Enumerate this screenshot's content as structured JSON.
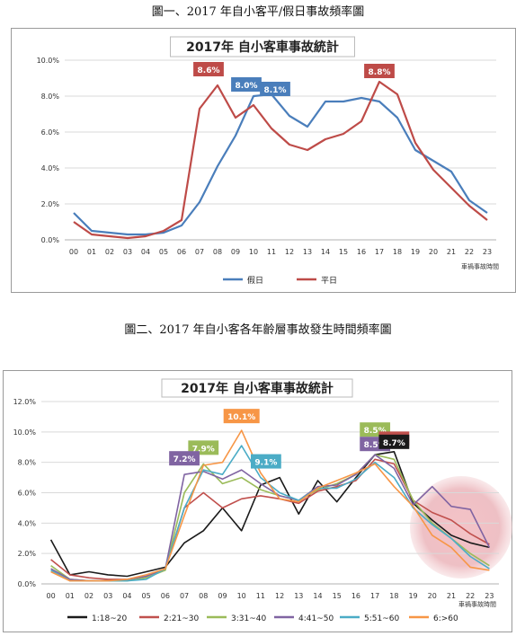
{
  "captions": {
    "fig1": "圖一、2017 年自小客平/假日事故頻率圖",
    "fig2": "圖二、2017 年自小客各年齡層事故發生時間頻率圖"
  },
  "chart_data": [
    {
      "type": "line",
      "title": "2017年 自小客車事故統計",
      "xlabel": "車禍事故時間",
      "ylabel": "",
      "categories": [
        "00",
        "01",
        "02",
        "03",
        "04",
        "05",
        "06",
        "07",
        "08",
        "09",
        "10",
        "11",
        "12",
        "13",
        "14",
        "15",
        "16",
        "17",
        "18",
        "19",
        "20",
        "21",
        "22",
        "23"
      ],
      "ylim": [
        0,
        10
      ],
      "yticks": [
        "0.0%",
        "2.0%",
        "4.0%",
        "6.0%",
        "8.0%",
        "10.0%"
      ],
      "grid": true,
      "legend": "bottom",
      "series": [
        {
          "name": "假日",
          "color": "#4a7ebb",
          "values": [
            1.5,
            0.5,
            0.4,
            0.3,
            0.3,
            0.4,
            0.8,
            2.1,
            4.1,
            5.8,
            8.0,
            8.1,
            6.9,
            6.3,
            7.7,
            7.7,
            7.9,
            7.7,
            6.8,
            5.0,
            4.4,
            3.8,
            2.2,
            1.5
          ]
        },
        {
          "name": "平日",
          "color": "#be4b48",
          "values": [
            1.0,
            0.3,
            0.2,
            0.1,
            0.2,
            0.5,
            1.1,
            7.3,
            8.6,
            6.8,
            7.5,
            6.2,
            5.3,
            5.0,
            5.6,
            5.9,
            6.6,
            8.8,
            8.1,
            5.4,
            3.9,
            2.9,
            1.9,
            1.1
          ]
        }
      ],
      "annotations": [
        {
          "text": "8.6%",
          "series": "平日",
          "category": "08"
        },
        {
          "text": "8.0%",
          "series": "假日",
          "category": "10"
        },
        {
          "text": "8.1%",
          "series": "假日",
          "category": "11"
        },
        {
          "text": "8.8%",
          "series": "平日",
          "category": "17"
        }
      ]
    },
    {
      "type": "line",
      "title": "2017年 自小客車事故統計",
      "xlabel": "車禍事故時間",
      "ylabel": "",
      "categories": [
        "00",
        "01",
        "02",
        "03",
        "04",
        "05",
        "06",
        "07",
        "08",
        "09",
        "10",
        "11",
        "12",
        "13",
        "14",
        "15",
        "16",
        "17",
        "18",
        "19",
        "20",
        "21",
        "22",
        "23"
      ],
      "ylim": [
        0,
        12
      ],
      "yticks": [
        "0.0%",
        "2.0%",
        "4.0%",
        "6.0%",
        "8.0%",
        "10.0%",
        "12.0%"
      ],
      "grid": true,
      "legend": "bottom",
      "series": [
        {
          "name": "1:18~20",
          "color": "#1a1a1a",
          "values": [
            2.9,
            0.6,
            0.8,
            0.6,
            0.5,
            0.8,
            1.1,
            2.7,
            3.5,
            5.0,
            3.5,
            6.5,
            7.0,
            4.6,
            6.8,
            5.4,
            7.0,
            8.5,
            8.7,
            5.3,
            4.2,
            3.2,
            2.7,
            2.4
          ]
        },
        {
          "name": "2:21~30",
          "color": "#c0504d",
          "values": [
            1.6,
            0.6,
            0.4,
            0.3,
            0.3,
            0.5,
            1.0,
            5.0,
            6.0,
            5.0,
            5.6,
            5.8,
            5.6,
            5.3,
            6.1,
            6.4,
            6.8,
            8.2,
            7.9,
            5.5,
            4.7,
            4.2,
            3.3,
            2.6
          ]
        },
        {
          "name": "3:31~40",
          "color": "#9bbb59",
          "values": [
            1.2,
            0.3,
            0.2,
            0.2,
            0.2,
            0.4,
            0.9,
            6.0,
            7.9,
            6.6,
            7.0,
            6.2,
            5.8,
            5.5,
            6.2,
            6.6,
            7.2,
            8.5,
            8.2,
            5.5,
            4.0,
            3.0,
            2.0,
            1.2
          ]
        },
        {
          "name": "4:41~50",
          "color": "#8064a2",
          "values": [
            1.0,
            0.3,
            0.2,
            0.2,
            0.3,
            0.5,
            1.0,
            7.2,
            7.4,
            6.9,
            7.5,
            6.6,
            5.8,
            5.5,
            6.4,
            6.5,
            7.2,
            8.5,
            7.6,
            5.2,
            6.4,
            5.1,
            4.9,
            2.4
          ]
        },
        {
          "name": "5:51~60",
          "color": "#4bacc6",
          "values": [
            0.9,
            0.2,
            0.2,
            0.2,
            0.2,
            0.3,
            1.0,
            5.0,
            7.5,
            7.2,
            9.1,
            7.0,
            6.0,
            5.5,
            6.3,
            6.3,
            6.9,
            8.0,
            7.0,
            5.0,
            3.9,
            3.0,
            1.8,
            1.0
          ]
        },
        {
          "name": "6:>60",
          "color": "#f79646",
          "values": [
            0.8,
            0.2,
            0.2,
            0.2,
            0.3,
            0.6,
            1.0,
            4.5,
            7.8,
            8.0,
            10.1,
            7.3,
            5.6,
            5.4,
            6.3,
            6.8,
            7.3,
            7.9,
            6.4,
            5.1,
            3.2,
            2.4,
            1.1,
            0.9
          ]
        }
      ],
      "annotations": [
        {
          "text": "7.9%",
          "series": "3:31~40",
          "category": "08",
          "color": "#9bbb59"
        },
        {
          "text": "7.2%",
          "series": "4:41~50",
          "category": "07",
          "color": "#8064a2"
        },
        {
          "text": "10.1%",
          "series": "6:>60",
          "category": "10",
          "color": "#f79646"
        },
        {
          "text": "9.1%",
          "series": "5:51~60",
          "category": "11",
          "color": "#4bacc6"
        },
        {
          "text": "8.5%",
          "series": "3:31~40",
          "category": "17",
          "color": "#9bbb59"
        },
        {
          "text": "8.5%",
          "series": "4:41~50",
          "category": "17",
          "color": "#8064a2"
        },
        {
          "text": "8.2%",
          "series": "2:21~30",
          "category": "18",
          "color": "#c0504d"
        },
        {
          "text": "8.7%",
          "series": "1:18~20",
          "category": "18",
          "color": "#1a1a1a"
        }
      ]
    }
  ]
}
